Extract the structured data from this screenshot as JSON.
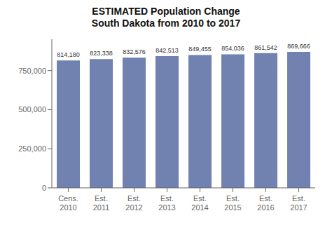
{
  "chart_data": {
    "type": "bar",
    "title": "ESTIMATED Population Change\nSouth Dakota from 2010 to 2017",
    "categories": [
      "Cens.\n2010",
      "Est.\n2011",
      "Est.\n2012",
      "Est.\n2013",
      "Est.\n2014",
      "Est.\n2015",
      "Est.\n2016",
      "Est.\n2017"
    ],
    "values": [
      814180,
      823338,
      832576,
      842513,
      849455,
      854036,
      861542,
      869666
    ],
    "value_labels": [
      "814,180",
      "823,338",
      "832,576",
      "842,513",
      "849,455",
      "854,036",
      "861,542",
      "869,666"
    ],
    "data_labels": true,
    "color": "#7182b0",
    "ylim": [
      0,
      950000
    ],
    "yticks": [
      0,
      {
        "value": 250000,
        "label": "250,000"
      },
      {
        "value": 500000,
        "label": "500,000"
      },
      {
        "value": 750000,
        "label": "750,000"
      }
    ],
    "grid": false
  }
}
